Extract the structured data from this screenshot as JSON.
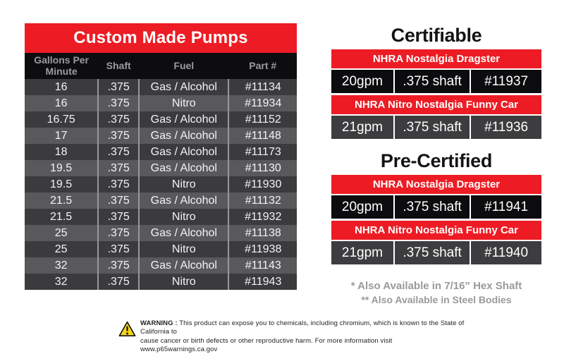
{
  "colors": {
    "accent_red": "#ED1C24",
    "row_dark": "#3B3B3D",
    "row_light": "#59595B",
    "black_row": "#0C0C0E",
    "header_text_gray": "#9C9C9E",
    "footnote_gray": "#9A9A9C",
    "warning_yellow": "#F9D616"
  },
  "table": {
    "title": "Custom Made Pumps",
    "columns": [
      "Gallons Per Minute",
      "Shaft",
      "Fuel",
      "Part #"
    ],
    "rows": [
      [
        "16",
        ".375",
        "Gas / Alcohol",
        "#11134"
      ],
      [
        "16",
        ".375",
        "Nitro",
        "#11934"
      ],
      [
        "16.75",
        ".375",
        "Gas / Alcohol",
        "#11152"
      ],
      [
        "17",
        ".375",
        "Gas / Alcohol",
        "#11148"
      ],
      [
        "18",
        ".375",
        "Gas / Alcohol",
        "#11173"
      ],
      [
        "19.5",
        ".375",
        "Gas / Alcohol",
        "#11130"
      ],
      [
        "19.5",
        ".375",
        "Nitro",
        "#11930"
      ],
      [
        "21.5",
        ".375",
        "Gas / Alcohol",
        "#11132"
      ],
      [
        "21.5",
        ".375",
        "Nitro",
        "#11932"
      ],
      [
        "25",
        ".375",
        "Gas / Alcohol",
        "#11138"
      ],
      [
        "25",
        ".375",
        "Nitro",
        "#11938"
      ],
      [
        "32",
        ".375",
        "Gas / Alcohol",
        "#11143"
      ],
      [
        "32",
        ".375",
        "Nitro",
        "#11943"
      ]
    ]
  },
  "right_panel": {
    "sections": [
      {
        "title": "Certifiable",
        "groups": [
          {
            "class": "NHRA Nostalgia Dragster",
            "tone": "black",
            "cells": [
              "20gpm",
              ".375 shaft",
              "#11937"
            ]
          },
          {
            "class": "NHRA Nitro Nostalgia Funny Car",
            "tone": "gray",
            "cells": [
              "21gpm",
              ".375 shaft",
              "#11936"
            ]
          }
        ]
      },
      {
        "title": "Pre-Certified",
        "groups": [
          {
            "class": "NHRA Nostalgia Dragster",
            "tone": "black",
            "cells": [
              "20gpm",
              ".375 shaft",
              "#11941"
            ]
          },
          {
            "class": "NHRA Nitro Nostalgia Funny Car",
            "tone": "gray",
            "cells": [
              "21gpm",
              ".375 shaft",
              "#11940"
            ]
          }
        ]
      }
    ],
    "footnotes": [
      "* Also Available in 7/16” Hex Shaft",
      "** Also Available in Steel Bodies"
    ]
  },
  "warning": {
    "label": "WARNING :",
    "line1": "This product can expose you to chemicals, including chromium, which is known to the State of California to",
    "line2": "cause cancer or birth defects or other reproductive harm. For more information visit www.p65warnings.ca.gov"
  }
}
